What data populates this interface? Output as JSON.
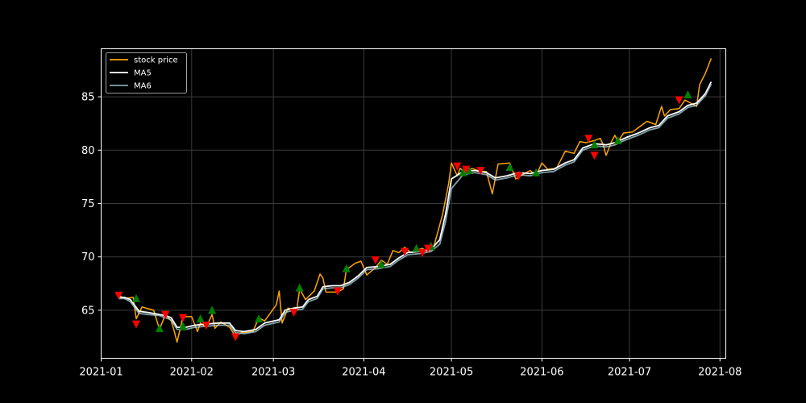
{
  "chart_data": {
    "type": "line",
    "title": "",
    "xlabel": "",
    "ylabel": "",
    "background": "#000000",
    "grid": true,
    "legend_placement": "top-left",
    "xlim": [
      "2021-01-01",
      "2021-08-03"
    ],
    "ylim": [
      60.5,
      89.5
    ],
    "x_ticks": [
      "2021-01",
      "2021-02",
      "2021-03",
      "2021-04",
      "2021-05",
      "2021-06",
      "2021-07",
      "2021-08"
    ],
    "x_tick_dates": [
      "2021-01-01",
      "2021-02-01",
      "2021-03-01",
      "2021-04-01",
      "2021-05-01",
      "2021-06-01",
      "2021-07-01",
      "2021-08-01"
    ],
    "y_ticks": [
      65,
      70,
      75,
      80,
      85
    ],
    "y_tick_labels": [
      "65",
      "70",
      "75",
      "80",
      "85"
    ],
    "series": [
      {
        "name": "stock price",
        "color": "#ffa500",
        "points": [
          [
            "2021-01-07",
            66.4
          ],
          [
            "2021-01-09",
            66.1
          ],
          [
            "2021-01-12",
            66.2
          ],
          [
            "2021-01-13",
            64.2
          ],
          [
            "2021-01-15",
            65.3
          ],
          [
            "2021-01-19",
            65.0
          ],
          [
            "2021-01-21",
            63.2
          ],
          [
            "2021-01-23",
            64.6
          ],
          [
            "2021-01-25",
            64.0
          ],
          [
            "2021-01-26",
            63.1
          ],
          [
            "2021-01-27",
            62.0
          ],
          [
            "2021-01-29",
            64.4
          ],
          [
            "2021-02-01",
            64.4
          ],
          [
            "2021-02-03",
            63.0
          ],
          [
            "2021-02-04",
            63.8
          ],
          [
            "2021-02-06",
            63.4
          ],
          [
            "2021-02-08",
            64.6
          ],
          [
            "2021-02-09",
            63.3
          ],
          [
            "2021-02-11",
            63.9
          ],
          [
            "2021-02-14",
            63.4
          ],
          [
            "2021-02-16",
            62.6
          ],
          [
            "2021-02-18",
            62.9
          ],
          [
            "2021-02-22",
            63.0
          ],
          [
            "2021-02-24",
            64.3
          ],
          [
            "2021-02-26",
            64.0
          ],
          [
            "2021-03-02",
            65.5
          ],
          [
            "2021-03-03",
            66.8
          ],
          [
            "2021-03-04",
            63.8
          ],
          [
            "2021-03-06",
            65.2
          ],
          [
            "2021-03-09",
            65.0
          ],
          [
            "2021-03-10",
            67.0
          ],
          [
            "2021-03-12",
            66.0
          ],
          [
            "2021-03-15",
            66.8
          ],
          [
            "2021-03-17",
            68.4
          ],
          [
            "2021-03-18",
            68.0
          ],
          [
            "2021-03-19",
            66.7
          ],
          [
            "2021-03-23",
            66.7
          ],
          [
            "2021-03-25",
            67.0
          ],
          [
            "2021-03-26",
            68.8
          ],
          [
            "2021-03-29",
            69.4
          ],
          [
            "2021-03-31",
            69.6
          ],
          [
            "2021-04-02",
            68.3
          ],
          [
            "2021-04-05",
            69.0
          ],
          [
            "2021-04-07",
            69.7
          ],
          [
            "2021-04-09",
            69.3
          ],
          [
            "2021-04-11",
            70.6
          ],
          [
            "2021-04-13",
            70.4
          ],
          [
            "2021-04-15",
            70.9
          ],
          [
            "2021-04-17",
            70.4
          ],
          [
            "2021-04-19",
            70.6
          ],
          [
            "2021-04-21",
            70.8
          ],
          [
            "2021-04-23",
            70.5
          ],
          [
            "2021-04-25",
            71.0
          ],
          [
            "2021-04-28",
            74.0
          ],
          [
            "2021-04-30",
            76.8
          ],
          [
            "2021-05-01",
            78.8
          ],
          [
            "2021-05-03",
            77.6
          ],
          [
            "2021-05-04",
            78.3
          ],
          [
            "2021-05-06",
            77.8
          ],
          [
            "2021-05-08",
            78.3
          ],
          [
            "2021-05-11",
            78.0
          ],
          [
            "2021-05-13",
            78.0
          ],
          [
            "2021-05-15",
            75.9
          ],
          [
            "2021-05-17",
            78.7
          ],
          [
            "2021-05-21",
            78.8
          ],
          [
            "2021-05-23",
            77.3
          ],
          [
            "2021-05-26",
            77.8
          ],
          [
            "2021-05-28",
            78.1
          ],
          [
            "2021-05-30",
            77.6
          ],
          [
            "2021-06-01",
            78.8
          ],
          [
            "2021-06-03",
            78.2
          ],
          [
            "2021-06-06",
            78.3
          ],
          [
            "2021-06-09",
            79.9
          ],
          [
            "2021-06-12",
            79.7
          ],
          [
            "2021-06-14",
            80.8
          ],
          [
            "2021-06-16",
            80.7
          ],
          [
            "2021-06-19",
            80.9
          ],
          [
            "2021-06-21",
            81.1
          ],
          [
            "2021-06-22",
            80.5
          ],
          [
            "2021-06-23",
            79.5
          ],
          [
            "2021-06-25",
            80.9
          ],
          [
            "2021-06-26",
            81.4
          ],
          [
            "2021-06-27",
            80.8
          ],
          [
            "2021-06-29",
            81.6
          ],
          [
            "2021-07-02",
            81.7
          ],
          [
            "2021-07-04",
            82.1
          ],
          [
            "2021-07-07",
            82.7
          ],
          [
            "2021-07-10",
            82.4
          ],
          [
            "2021-07-12",
            84.1
          ],
          [
            "2021-07-13",
            83.2
          ],
          [
            "2021-07-15",
            83.8
          ],
          [
            "2021-07-18",
            83.9
          ],
          [
            "2021-07-20",
            84.7
          ],
          [
            "2021-07-22",
            84.4
          ],
          [
            "2021-07-24",
            84.1
          ],
          [
            "2021-07-25",
            86.1
          ],
          [
            "2021-07-27",
            87.2
          ],
          [
            "2021-07-29",
            88.6
          ]
        ]
      },
      {
        "name": "MA5",
        "color": "#ffffff",
        "points": [
          [
            "2021-01-07",
            66.2
          ],
          [
            "2021-01-09",
            66.2
          ],
          [
            "2021-01-11",
            66.0
          ],
          [
            "2021-01-14",
            64.9
          ],
          [
            "2021-01-17",
            64.8
          ],
          [
            "2021-01-21",
            64.6
          ],
          [
            "2021-01-23",
            64.5
          ],
          [
            "2021-01-25",
            64.3
          ],
          [
            "2021-01-27",
            63.4
          ],
          [
            "2021-01-30",
            63.4
          ],
          [
            "2021-02-02",
            63.6
          ],
          [
            "2021-02-06",
            63.7
          ],
          [
            "2021-02-10",
            63.8
          ],
          [
            "2021-02-14",
            63.8
          ],
          [
            "2021-02-16",
            63.1
          ],
          [
            "2021-02-19",
            63.0
          ],
          [
            "2021-02-23",
            63.2
          ],
          [
            "2021-02-26",
            63.8
          ],
          [
            "2021-03-03",
            64.1
          ],
          [
            "2021-03-05",
            65.0
          ],
          [
            "2021-03-08",
            65.2
          ],
          [
            "2021-03-11",
            65.3
          ],
          [
            "2021-03-13",
            66.0
          ],
          [
            "2021-03-16",
            66.3
          ],
          [
            "2021-03-18",
            67.2
          ],
          [
            "2021-03-21",
            67.3
          ],
          [
            "2021-03-24",
            67.3
          ],
          [
            "2021-03-27",
            67.6
          ],
          [
            "2021-03-30",
            68.2
          ],
          [
            "2021-04-02",
            69.0
          ],
          [
            "2021-04-06",
            69.1
          ],
          [
            "2021-04-10",
            69.3
          ],
          [
            "2021-04-13",
            69.9
          ],
          [
            "2021-04-16",
            70.4
          ],
          [
            "2021-04-20",
            70.5
          ],
          [
            "2021-04-24",
            70.7
          ],
          [
            "2021-04-27",
            71.6
          ],
          [
            "2021-04-29",
            74.0
          ],
          [
            "2021-05-01",
            77.3
          ],
          [
            "2021-05-05",
            78.0
          ],
          [
            "2021-05-09",
            78.1
          ],
          [
            "2021-05-13",
            77.9
          ],
          [
            "2021-05-16",
            77.4
          ],
          [
            "2021-05-20",
            77.6
          ],
          [
            "2021-05-24",
            77.9
          ],
          [
            "2021-05-28",
            77.8
          ],
          [
            "2021-06-01",
            78.1
          ],
          [
            "2021-06-05",
            78.2
          ],
          [
            "2021-06-09",
            78.8
          ],
          [
            "2021-06-12",
            79.1
          ],
          [
            "2021-06-15",
            80.2
          ],
          [
            "2021-06-19",
            80.6
          ],
          [
            "2021-06-23",
            80.5
          ],
          [
            "2021-06-26",
            80.7
          ],
          [
            "2021-06-30",
            81.2
          ],
          [
            "2021-07-04",
            81.6
          ],
          [
            "2021-07-08",
            82.1
          ],
          [
            "2021-07-11",
            82.3
          ],
          [
            "2021-07-14",
            83.2
          ],
          [
            "2021-07-18",
            83.6
          ],
          [
            "2021-07-21",
            84.2
          ],
          [
            "2021-07-24",
            84.4
          ],
          [
            "2021-07-27",
            85.3
          ],
          [
            "2021-07-29",
            86.4
          ]
        ]
      },
      {
        "name": "MA6",
        "color": "#add8e6",
        "points": [
          [
            "2021-01-07",
            66.1
          ],
          [
            "2021-01-09",
            66.1
          ],
          [
            "2021-01-11",
            65.8
          ],
          [
            "2021-01-14",
            64.7
          ],
          [
            "2021-01-17",
            64.6
          ],
          [
            "2021-01-21",
            64.5
          ],
          [
            "2021-01-23",
            64.3
          ],
          [
            "2021-01-25",
            64.1
          ],
          [
            "2021-01-27",
            63.2
          ],
          [
            "2021-01-30",
            63.2
          ],
          [
            "2021-02-02",
            63.4
          ],
          [
            "2021-02-06",
            63.5
          ],
          [
            "2021-02-10",
            63.6
          ],
          [
            "2021-02-14",
            63.6
          ],
          [
            "2021-02-16",
            62.9
          ],
          [
            "2021-02-19",
            62.8
          ],
          [
            "2021-02-23",
            63.0
          ],
          [
            "2021-02-26",
            63.6
          ],
          [
            "2021-03-03",
            63.9
          ],
          [
            "2021-03-05",
            64.8
          ],
          [
            "2021-03-08",
            65.0
          ],
          [
            "2021-03-11",
            65.1
          ],
          [
            "2021-03-13",
            65.8
          ],
          [
            "2021-03-16",
            66.1
          ],
          [
            "2021-03-18",
            67.0
          ],
          [
            "2021-03-21",
            67.1
          ],
          [
            "2021-03-24",
            67.1
          ],
          [
            "2021-03-27",
            67.4
          ],
          [
            "2021-03-30",
            68.0
          ],
          [
            "2021-04-02",
            68.8
          ],
          [
            "2021-04-06",
            68.9
          ],
          [
            "2021-04-10",
            69.1
          ],
          [
            "2021-04-13",
            69.7
          ],
          [
            "2021-04-16",
            70.2
          ],
          [
            "2021-04-20",
            70.3
          ],
          [
            "2021-04-24",
            70.5
          ],
          [
            "2021-04-27",
            71.2
          ],
          [
            "2021-04-29",
            73.3
          ],
          [
            "2021-05-01",
            76.4
          ],
          [
            "2021-05-05",
            77.7
          ],
          [
            "2021-05-09",
            77.9
          ],
          [
            "2021-05-13",
            77.7
          ],
          [
            "2021-05-16",
            77.2
          ],
          [
            "2021-05-20",
            77.4
          ],
          [
            "2021-05-24",
            77.7
          ],
          [
            "2021-05-28",
            77.6
          ],
          [
            "2021-06-01",
            77.9
          ],
          [
            "2021-06-05",
            78.0
          ],
          [
            "2021-06-09",
            78.6
          ],
          [
            "2021-06-12",
            78.9
          ],
          [
            "2021-06-15",
            80.0
          ],
          [
            "2021-06-19",
            80.4
          ],
          [
            "2021-06-23",
            80.3
          ],
          [
            "2021-06-26",
            80.5
          ],
          [
            "2021-06-30",
            81.0
          ],
          [
            "2021-07-04",
            81.4
          ],
          [
            "2021-07-08",
            81.9
          ],
          [
            "2021-07-11",
            82.1
          ],
          [
            "2021-07-14",
            83.0
          ],
          [
            "2021-07-18",
            83.4
          ],
          [
            "2021-07-21",
            84.0
          ],
          [
            "2021-07-24",
            84.2
          ],
          [
            "2021-07-27",
            85.1
          ],
          [
            "2021-07-29",
            86.2
          ]
        ]
      }
    ],
    "markers": {
      "up": {
        "color": "#008000",
        "points": [
          [
            "2021-01-13",
            66.1
          ],
          [
            "2021-01-21",
            63.3
          ],
          [
            "2021-01-29",
            63.5
          ],
          [
            "2021-02-04",
            64.2
          ],
          [
            "2021-02-08",
            65.0
          ],
          [
            "2021-02-24",
            64.2
          ],
          [
            "2021-03-10",
            67.1
          ],
          [
            "2021-03-26",
            68.9
          ],
          [
            "2021-04-07",
            69.3
          ],
          [
            "2021-04-19",
            70.8
          ],
          [
            "2021-04-24",
            71.0
          ],
          [
            "2021-05-05",
            77.9
          ],
          [
            "2021-05-07",
            78.1
          ],
          [
            "2021-05-21",
            78.4
          ],
          [
            "2021-05-30",
            77.9
          ],
          [
            "2021-06-19",
            80.5
          ],
          [
            "2021-06-27",
            80.9
          ],
          [
            "2021-07-21",
            85.2
          ]
        ]
      },
      "down": {
        "color": "#ff0000",
        "points": [
          [
            "2021-01-07",
            66.4
          ],
          [
            "2021-01-13",
            63.7
          ],
          [
            "2021-01-23",
            64.6
          ],
          [
            "2021-01-29",
            64.3
          ],
          [
            "2021-02-06",
            63.6
          ],
          [
            "2021-02-16",
            62.5
          ],
          [
            "2021-03-08",
            64.8
          ],
          [
            "2021-03-23",
            66.8
          ],
          [
            "2021-04-05",
            69.7
          ],
          [
            "2021-04-15",
            70.5
          ],
          [
            "2021-04-21",
            70.4
          ],
          [
            "2021-04-23",
            70.8
          ],
          [
            "2021-05-03",
            78.5
          ],
          [
            "2021-05-06",
            78.2
          ],
          [
            "2021-05-11",
            78.1
          ],
          [
            "2021-05-24",
            77.6
          ],
          [
            "2021-06-17",
            81.1
          ],
          [
            "2021-06-19",
            79.5
          ],
          [
            "2021-07-18",
            84.7
          ]
        ]
      }
    }
  }
}
